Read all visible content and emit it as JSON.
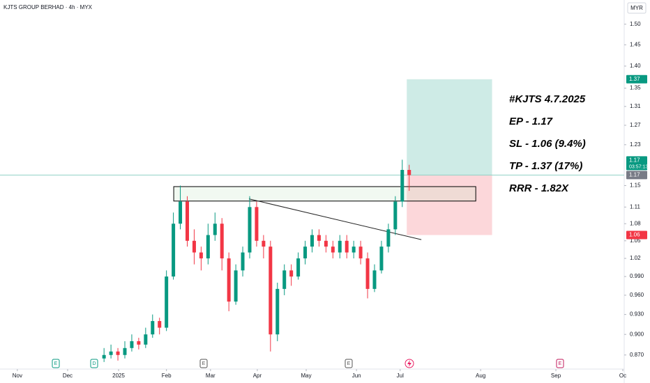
{
  "chart_data": {
    "type": "candlestick",
    "title": "KJTS GROUP BERHAD · 4h · MYX",
    "currency": "MYR",
    "log_scale": true,
    "grid": false,
    "up_color": "#089981",
    "down_color": "#f23645",
    "x": [
      30,
      32,
      34,
      36,
      38,
      40,
      42,
      44,
      46,
      48,
      50,
      52,
      54,
      56,
      58,
      60,
      62,
      64,
      66,
      68,
      70,
      72,
      74,
      76,
      78,
      80,
      82,
      84,
      86,
      88,
      90,
      92,
      94,
      96,
      98,
      100,
      102,
      104,
      106,
      108,
      110,
      112,
      114,
      116,
      118
    ],
    "open": [
      0.865,
      0.87,
      0.875,
      0.87,
      0.88,
      0.89,
      0.885,
      0.9,
      0.92,
      0.91,
      0.99,
      1.08,
      1.12,
      1.05,
      1.03,
      1.02,
      1.06,
      1.08,
      1.02,
      0.95,
      1.0,
      1.03,
      1.11,
      1.05,
      1.04,
      0.9,
      0.97,
      1.0,
      0.99,
      1.02,
      1.04,
      1.06,
      1.05,
      1.04,
      1.03,
      1.05,
      1.03,
      1.04,
      1.02,
      0.97,
      1.0,
      1.04,
      1.07,
      1.12,
      1.18
    ],
    "high": [
      0.88,
      0.885,
      0.88,
      0.89,
      0.9,
      0.895,
      0.91,
      0.93,
      0.925,
      1.0,
      1.1,
      1.15,
      1.13,
      1.07,
      1.04,
      1.08,
      1.1,
      1.09,
      1.03,
      1.01,
      1.04,
      1.13,
      1.12,
      1.06,
      1.05,
      0.98,
      1.01,
      1.01,
      1.03,
      1.05,
      1.07,
      1.07,
      1.06,
      1.05,
      1.06,
      1.06,
      1.05,
      1.05,
      1.03,
      1.01,
      1.05,
      1.08,
      1.13,
      1.2,
      1.19
    ],
    "low": [
      0.86,
      0.865,
      0.862,
      0.865,
      0.875,
      0.878,
      0.88,
      0.895,
      0.9,
      0.905,
      0.985,
      1.07,
      1.04,
      1.01,
      1.0,
      1.01,
      1.05,
      1.0,
      0.935,
      0.945,
      0.99,
      1.02,
      1.04,
      1.02,
      0.875,
      0.89,
      0.96,
      0.975,
      0.985,
      1.01,
      1.03,
      1.04,
      1.03,
      1.02,
      1.02,
      1.02,
      1.02,
      1.01,
      0.955,
      0.965,
      0.995,
      1.03,
      1.06,
      1.11,
      1.14
    ],
    "close": [
      0.87,
      0.875,
      0.87,
      0.88,
      0.89,
      0.885,
      0.9,
      0.92,
      0.91,
      0.99,
      1.08,
      1.12,
      1.05,
      1.03,
      1.02,
      1.06,
      1.08,
      1.02,
      0.95,
      1.0,
      1.03,
      1.11,
      1.05,
      1.04,
      0.9,
      0.97,
      1.0,
      0.99,
      1.02,
      1.04,
      1.06,
      1.05,
      1.04,
      1.03,
      1.05,
      1.03,
      1.04,
      1.02,
      0.97,
      1.0,
      1.04,
      1.07,
      1.12,
      1.18,
      1.17
    ],
    "xlim": [
      0,
      180
    ],
    "xticks": [
      {
        "value": 5,
        "label": "Nov"
      },
      {
        "value": 19.5,
        "label": "Dec"
      },
      {
        "value": 34.2,
        "label": "2025"
      },
      {
        "value": 48,
        "label": "Feb"
      },
      {
        "value": 60.7,
        "label": "Mar"
      },
      {
        "value": 74.2,
        "label": "Apr"
      },
      {
        "value": 88.3,
        "label": "May"
      },
      {
        "value": 102.8,
        "label": "Jun"
      },
      {
        "value": 115.4,
        "label": "Jul"
      },
      {
        "value": 138.6,
        "label": "Aug"
      },
      {
        "value": 160.3,
        "label": "Sep"
      },
      {
        "value": 179.6,
        "label": "Oc"
      }
    ],
    "ylim": [
      0.852,
      1.561
    ],
    "yticks": [
      {
        "value": 1.5,
        "label": "1.50"
      },
      1.45,
      {
        "value": 1.4,
        "label": "1.40"
      },
      1.35,
      1.31,
      1.27,
      1.23,
      1.15,
      1.11,
      1.08,
      1.05,
      1.02,
      {
        "value": 0.99,
        "label": "0.990"
      },
      {
        "value": 0.96,
        "label": "0.960"
      },
      {
        "value": 0.93,
        "label": "0.930"
      },
      {
        "value": 0.9,
        "label": "0.900"
      },
      {
        "value": 0.87,
        "label": "0.870"
      }
    ],
    "last_price": 1.17,
    "countdown": "03:57:13",
    "position": {
      "x": [
        117.3,
        141.9
      ],
      "entry": 1.17,
      "stop": 1.06,
      "target": 1.37
    },
    "zone": {
      "x": [
        50.1,
        137.2
      ],
      "y": [
        1.121,
        1.148
      ]
    },
    "trendline": {
      "x": [
        71.8,
        121.5
      ],
      "y": [
        1.125,
        1.052
      ]
    },
    "annotations": [
      "#KJTS 4.7.2025",
      "EP - 1.17",
      "SL - 1.06 (9.4%)",
      "TP - 1.37 (17%)",
      "RRR - 1.82X"
    ],
    "events": [
      "E",
      "D",
      "E",
      "E",
      "E"
    ]
  }
}
